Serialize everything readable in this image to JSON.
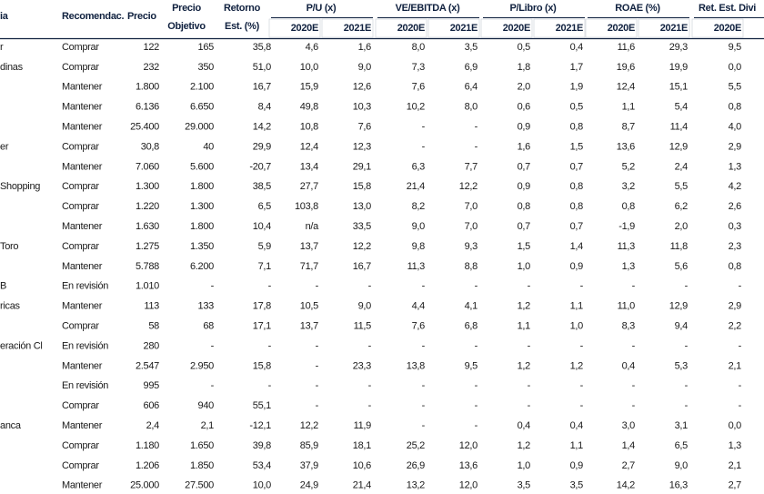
{
  "header": {
    "first": "ia",
    "recommendation": "Recomendac.",
    "price": "Precio",
    "target": [
      "Precio",
      "Objetivo"
    ],
    "return": [
      "Retorno",
      "Est. (%)"
    ],
    "groups": [
      {
        "title": "P/U (x)",
        "years": [
          "2020E",
          "2021E"
        ]
      },
      {
        "title": "VE/EBITDA (x)",
        "years": [
          "2020E",
          "2021E"
        ]
      },
      {
        "title": "P/Libro (x)",
        "years": [
          "2020E",
          "2021E"
        ]
      },
      {
        "title": "ROAE (%)",
        "years": [
          "2020E",
          "2021E"
        ]
      },
      {
        "title": "Ret. Est. Divi",
        "years": [
          "2020E"
        ]
      }
    ]
  },
  "rows": [
    {
      "name": "r",
      "rec": "Comprar",
      "cells": [
        "122",
        "165",
        "35,8",
        "4,6",
        "1,6",
        "8,0",
        "3,5",
        "0,5",
        "0,4",
        "11,6",
        "29,3",
        "9,5"
      ]
    },
    {
      "name": "dinas",
      "rec": "Comprar",
      "cells": [
        "232",
        "350",
        "51,0",
        "10,0",
        "9,0",
        "7,3",
        "6,9",
        "1,8",
        "1,7",
        "19,6",
        "19,9",
        "0,0"
      ]
    },
    {
      "rec": "Mantener",
      "cells": [
        "1.800",
        "2.100",
        "16,7",
        "15,9",
        "12,6",
        "7,6",
        "6,4",
        "2,0",
        "1,9",
        "12,4",
        "15,1",
        "5,5"
      ]
    },
    {
      "rec": "Mantener",
      "cells": [
        "6.136",
        "6.650",
        "8,4",
        "49,8",
        "10,3",
        "10,2",
        "8,0",
        "0,6",
        "0,5",
        "1,1",
        "5,4",
        "0,8"
      ]
    },
    {
      "rec": "Mantener",
      "cells": [
        "25.400",
        "29.000",
        "14,2",
        "10,8",
        "7,6",
        "-",
        "-",
        "0,9",
        "0,8",
        "8,7",
        "11,4",
        "4,0"
      ]
    },
    {
      "name": "er",
      "rec": "Comprar",
      "cells": [
        "30,8",
        "40",
        "29,9",
        "12,4",
        "12,3",
        "-",
        "-",
        "1,6",
        "1,5",
        "13,6",
        "12,9",
        "2,9"
      ]
    },
    {
      "rec": "Mantener",
      "cells": [
        "7.060",
        "5.600",
        "-20,7",
        "13,4",
        "29,1",
        "6,3",
        "7,7",
        "0,7",
        "0,7",
        "5,2",
        "2,4",
        "1,3"
      ]
    },
    {
      "name": "Shopping",
      "rec": "Comprar",
      "cells": [
        "1.300",
        "1.800",
        "38,5",
        "27,7",
        "15,8",
        "21,4",
        "12,2",
        "0,9",
        "0,8",
        "3,2",
        "5,5",
        "4,2"
      ]
    },
    {
      "rec": "Comprar",
      "cells": [
        "1.220",
        "1.300",
        "6,5",
        "103,8",
        "13,0",
        "8,2",
        "7,0",
        "0,8",
        "0,8",
        "0,8",
        "6,2",
        "2,6"
      ]
    },
    {
      "rec": "Mantener",
      "cells": [
        "1.630",
        "1.800",
        "10,4",
        "n/a",
        "33,5",
        "9,0",
        "7,0",
        "0,7",
        "0,7",
        "-1,9",
        "2,0",
        "0,3"
      ]
    },
    {
      "name": "Toro",
      "rec": "Comprar",
      "cells": [
        "1.275",
        "1.350",
        "5,9",
        "13,7",
        "12,2",
        "9,8",
        "9,3",
        "1,5",
        "1,4",
        "11,3",
        "11,8",
        "2,3"
      ]
    },
    {
      "rec": "Mantener",
      "cells": [
        "5.788",
        "6.200",
        "7,1",
        "71,7",
        "16,7",
        "11,3",
        "8,8",
        "1,0",
        "0,9",
        "1,3",
        "5,6",
        "0,8"
      ]
    },
    {
      "name": "B",
      "rec": "En revisión",
      "cells": [
        "1.010",
        "-",
        "-",
        "-",
        "-",
        "-",
        "-",
        "-",
        "-",
        "-",
        "-",
        "-"
      ]
    },
    {
      "name": "ricas",
      "rec": "Mantener",
      "cells": [
        "113",
        "133",
        "17,8",
        "10,5",
        "9,0",
        "4,4",
        "4,1",
        "1,2",
        "1,1",
        "11,0",
        "12,9",
        "2,9"
      ]
    },
    {
      "rec": "Comprar",
      "cells": [
        "58",
        "68",
        "17,1",
        "13,7",
        "11,5",
        "7,6",
        "6,8",
        "1,1",
        "1,0",
        "8,3",
        "9,4",
        "2,2"
      ]
    },
    {
      "name": "eración Cl",
      "rec": "En revisión",
      "cells": [
        "280",
        "-",
        "-",
        "-",
        "-",
        "-",
        "-",
        "-",
        "-",
        "-",
        "-",
        "-"
      ]
    },
    {
      "rec": "Mantener",
      "cells": [
        "2.547",
        "2.950",
        "15,8",
        "-",
        "23,3",
        "13,8",
        "9,5",
        "1,2",
        "1,2",
        "0,4",
        "5,3",
        "2,1"
      ]
    },
    {
      "rec": "En revisión",
      "cells": [
        "995",
        "-",
        "-",
        "-",
        "-",
        "-",
        "-",
        "-",
        "-",
        "-",
        "-",
        "-"
      ]
    },
    {
      "rec": "Comprar",
      "cells": [
        "606",
        "940",
        "55,1",
        "-",
        "-",
        "-",
        "-",
        "-",
        "-",
        "-",
        "-",
        "-"
      ]
    },
    {
      "name": "anca",
      "rec": "Mantener",
      "cells": [
        "2,4",
        "2,1",
        "-12,1",
        "12,2",
        "11,9",
        "-",
        "-",
        "0,4",
        "0,4",
        "3,0",
        "3,1",
        "0,0"
      ]
    },
    {
      "rec": "Comprar",
      "cells": [
        "1.180",
        "1.650",
        "39,8",
        "85,9",
        "18,1",
        "25,2",
        "12,0",
        "1,2",
        "1,1",
        "1,4",
        "6,5",
        "1,3"
      ]
    },
    {
      "rec": "Comprar",
      "cells": [
        "1.206",
        "1.850",
        "53,4",
        "37,9",
        "10,6",
        "26,9",
        "13,6",
        "1,0",
        "0,9",
        "2,7",
        "9,0",
        "2,1"
      ]
    },
    {
      "rec": "Mantener",
      "cells": [
        "25.000",
        "27.500",
        "10,0",
        "24,9",
        "21,4",
        "13,2",
        "12,0",
        "3,5",
        "3,5",
        "14,2",
        "16,3",
        "2,7"
      ]
    }
  ]
}
